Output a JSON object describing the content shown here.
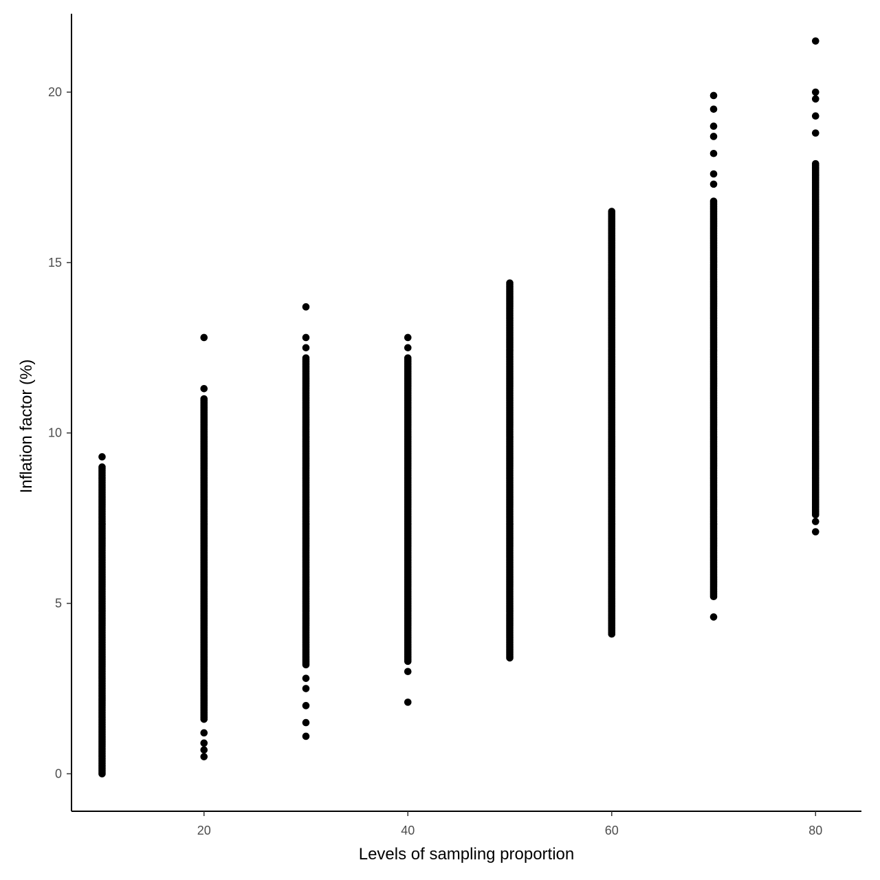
{
  "chart_data": {
    "type": "scatter",
    "title": "",
    "xlabel": "Levels of sampling proportion",
    "ylabel": "Inflation factor (%)",
    "xlim": [
      7,
      84.5
    ],
    "ylim": [
      -1.1,
      22.3
    ],
    "x_ticks": [
      20,
      40,
      60,
      80
    ],
    "x_tick_labels": [
      "20",
      "40",
      "60",
      "80"
    ],
    "y_ticks": [
      0,
      5,
      10,
      15,
      20
    ],
    "y_tick_labels": [
      "0",
      "5",
      "10",
      "15",
      "20"
    ],
    "grid": false,
    "legend": "none",
    "point_color": "#000000",
    "groups": [
      {
        "x": 10,
        "min": 0.0,
        "max": 9.0,
        "outliers": [
          9.3
        ]
      },
      {
        "x": 20,
        "min": 1.6,
        "max": 11.0,
        "outliers": [
          0.5,
          0.7,
          0.9,
          1.2,
          11.3,
          12.8
        ]
      },
      {
        "x": 30,
        "min": 3.2,
        "max": 12.2,
        "outliers": [
          1.1,
          1.5,
          2.0,
          2.5,
          2.8,
          12.5,
          12.8,
          13.7
        ]
      },
      {
        "x": 40,
        "min": 3.3,
        "max": 12.2,
        "outliers": [
          2.1,
          3.0,
          12.5,
          12.8
        ]
      },
      {
        "x": 50,
        "min": 3.4,
        "max": 14.4,
        "outliers": []
      },
      {
        "x": 60,
        "min": 4.1,
        "max": 16.5,
        "outliers": []
      },
      {
        "x": 70,
        "min": 5.2,
        "max": 16.8,
        "outliers": [
          4.6,
          17.3,
          17.6,
          18.2,
          18.7,
          19.0,
          19.5,
          19.9
        ]
      },
      {
        "x": 80,
        "min": 7.6,
        "max": 17.9,
        "outliers": [
          7.1,
          7.4,
          18.8,
          19.3,
          19.8,
          20.0,
          21.5
        ]
      }
    ]
  }
}
